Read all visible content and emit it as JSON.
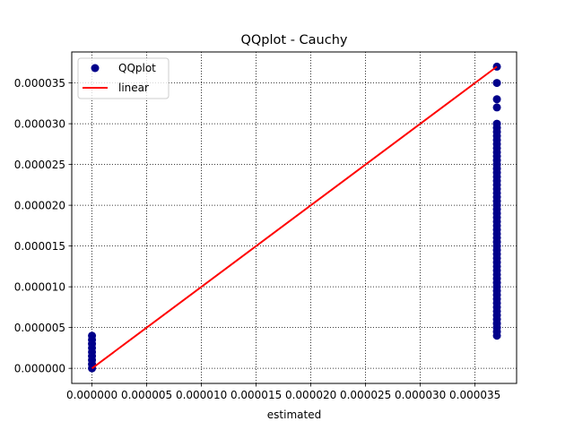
{
  "chart_data": {
    "type": "scatter",
    "title": "QQplot - Cauchy",
    "xlabel": "estimated",
    "ylabel": "",
    "xlim": [
      -1.85e-06,
      3.88e-05
    ],
    "ylim": [
      -1.85e-06,
      3.88e-05
    ],
    "grid": true,
    "grid_style": "dotted",
    "legend_position": "upper-left",
    "x_ticks": [
      0.0,
      5e-06,
      1e-05,
      1.5e-05,
      2e-05,
      2.5e-05,
      3e-05,
      3.5e-05
    ],
    "x_tick_labels": [
      "0.000000",
      "0.000005",
      "0.000010",
      "0.000015",
      "0.000020",
      "0.000025",
      "0.000030",
      "0.000035"
    ],
    "y_ticks": [
      0.0,
      5e-06,
      1e-05,
      1.5e-05,
      2e-05,
      2.5e-05,
      3e-05,
      3.5e-05
    ],
    "y_tick_labels": [
      "0.000000",
      "0.000005",
      "0.000010",
      "0.000015",
      "0.000020",
      "0.000025",
      "0.000030",
      "0.000035"
    ],
    "series": [
      {
        "name": "QQplot",
        "kind": "scatter",
        "color": "#00008b",
        "points": [
          [
            0.0,
            0.0
          ],
          [
            0.0,
            5e-07
          ],
          [
            0.0,
            1e-06
          ],
          [
            0.0,
            1.5e-06
          ],
          [
            0.0,
            2e-06
          ],
          [
            0.0,
            2.5e-06
          ],
          [
            0.0,
            3e-06
          ],
          [
            0.0,
            3.5e-06
          ],
          [
            0.0,
            4e-06
          ],
          [
            3.7e-05,
            4e-06
          ],
          [
            3.7e-05,
            4.5e-06
          ],
          [
            3.7e-05,
            5e-06
          ],
          [
            3.7e-05,
            5.5e-06
          ],
          [
            3.7e-05,
            6e-06
          ],
          [
            3.7e-05,
            6.5e-06
          ],
          [
            3.7e-05,
            7e-06
          ],
          [
            3.7e-05,
            7.5e-06
          ],
          [
            3.7e-05,
            8e-06
          ],
          [
            3.7e-05,
            8.5e-06
          ],
          [
            3.7e-05,
            9e-06
          ],
          [
            3.7e-05,
            9.5e-06
          ],
          [
            3.7e-05,
            1e-05
          ],
          [
            3.7e-05,
            1.05e-05
          ],
          [
            3.7e-05,
            1.1e-05
          ],
          [
            3.7e-05,
            1.15e-05
          ],
          [
            3.7e-05,
            1.2e-05
          ],
          [
            3.7e-05,
            1.25e-05
          ],
          [
            3.7e-05,
            1.3e-05
          ],
          [
            3.7e-05,
            1.35e-05
          ],
          [
            3.7e-05,
            1.4e-05
          ],
          [
            3.7e-05,
            1.45e-05
          ],
          [
            3.7e-05,
            1.5e-05
          ],
          [
            3.7e-05,
            1.55e-05
          ],
          [
            3.7e-05,
            1.6e-05
          ],
          [
            3.7e-05,
            1.65e-05
          ],
          [
            3.7e-05,
            1.7e-05
          ],
          [
            3.7e-05,
            1.75e-05
          ],
          [
            3.7e-05,
            1.8e-05
          ],
          [
            3.7e-05,
            1.85e-05
          ],
          [
            3.7e-05,
            1.9e-05
          ],
          [
            3.7e-05,
            1.95e-05
          ],
          [
            3.7e-05,
            2e-05
          ],
          [
            3.7e-05,
            2.05e-05
          ],
          [
            3.7e-05,
            2.1e-05
          ],
          [
            3.7e-05,
            2.15e-05
          ],
          [
            3.7e-05,
            2.2e-05
          ],
          [
            3.7e-05,
            2.25e-05
          ],
          [
            3.7e-05,
            2.3e-05
          ],
          [
            3.7e-05,
            2.35e-05
          ],
          [
            3.7e-05,
            2.4e-05
          ],
          [
            3.7e-05,
            2.45e-05
          ],
          [
            3.7e-05,
            2.5e-05
          ],
          [
            3.7e-05,
            2.55e-05
          ],
          [
            3.7e-05,
            2.6e-05
          ],
          [
            3.7e-05,
            2.65e-05
          ],
          [
            3.7e-05,
            2.7e-05
          ],
          [
            3.7e-05,
            2.75e-05
          ],
          [
            3.7e-05,
            2.8e-05
          ],
          [
            3.7e-05,
            2.85e-05
          ],
          [
            3.7e-05,
            2.9e-05
          ],
          [
            3.7e-05,
            2.95e-05
          ],
          [
            3.7e-05,
            3e-05
          ],
          [
            3.7e-05,
            3.2e-05
          ],
          [
            3.7e-05,
            3.3e-05
          ],
          [
            3.7e-05,
            3.5e-05
          ],
          [
            3.7e-05,
            3.7e-05
          ]
        ]
      },
      {
        "name": "linear",
        "kind": "line",
        "color": "#ff0000",
        "points": [
          [
            0.0,
            0.0
          ],
          [
            3.7e-05,
            3.7e-05
          ]
        ]
      }
    ]
  }
}
